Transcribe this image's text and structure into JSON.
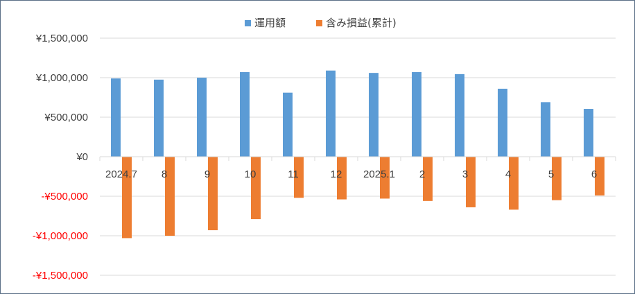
{
  "chart_data": {
    "type": "bar",
    "categories": [
      "2024.7",
      "8",
      "9",
      "10",
      "11",
      "12",
      "2025.1",
      "2",
      "3",
      "4",
      "5",
      "6"
    ],
    "series": [
      {
        "name": "運用額",
        "color": "#5b9bd5",
        "values": [
          990000,
          975000,
          1000000,
          1070000,
          810000,
          1090000,
          1060000,
          1070000,
          1045000,
          860000,
          690000,
          605000
        ]
      },
      {
        "name": "含み損益(累計)",
        "color": "#ed7d31",
        "values": [
          -1030000,
          -1000000,
          -930000,
          -790000,
          -520000,
          -540000,
          -530000,
          -560000,
          -640000,
          -670000,
          -550000,
          -490000
        ]
      }
    ],
    "yticks": [
      {
        "value": 1500000,
        "label": "¥1,500,000",
        "color": "#404040"
      },
      {
        "value": 1000000,
        "label": "¥1,000,000",
        "color": "#404040"
      },
      {
        "value": 500000,
        "label": "¥500,000",
        "color": "#404040"
      },
      {
        "value": 0,
        "label": "¥0",
        "color": "#404040"
      },
      {
        "value": -500000,
        "label": "-¥500,000",
        "color": "#ff0000"
      },
      {
        "value": -1000000,
        "label": "-¥1,000,000",
        "color": "#ff0000"
      },
      {
        "value": -1500000,
        "label": "-¥1,500,000",
        "color": "#ff0000"
      }
    ],
    "ylim": [
      -1500000,
      1500000
    ],
    "grid": true,
    "legend_position": "top-center",
    "title": "",
    "xlabel": "",
    "ylabel": ""
  }
}
